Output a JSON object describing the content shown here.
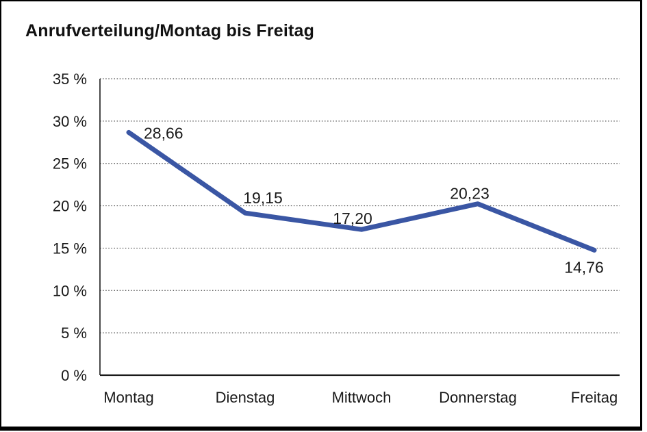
{
  "chart": {
    "title": "Anrufverteilung/Montag bis Freitag"
  },
  "chart_data": {
    "type": "line",
    "title": "Anrufverteilung/Montag bis Freitag",
    "categories": [
      "Montag",
      "Dienstag",
      "Mittwoch",
      "Donnerstag",
      "Freitag"
    ],
    "values": [
      28.66,
      19.15,
      17.2,
      20.23,
      14.76
    ],
    "point_labels": [
      "28,66",
      "19,15",
      "17,20",
      "20,23",
      "14,76"
    ],
    "xlabel": "",
    "ylabel": "",
    "ylim": [
      0,
      35
    ],
    "ytick_step": 5,
    "ytick_labels": [
      "0 %",
      "5 %",
      "10 %",
      "15 %",
      "20 %",
      "25 %",
      "30 %",
      "35 %"
    ],
    "grid": "horizontal-dotted",
    "legend": "none",
    "line_color": "#3A56A4",
    "gridline_color": "#4d4d4d",
    "axis_color": "#1a1a1a"
  }
}
